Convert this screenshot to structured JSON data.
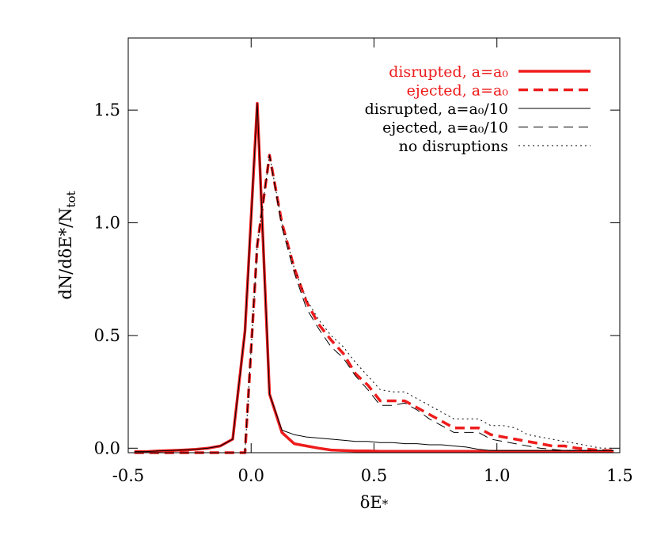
{
  "chart_data": {
    "type": "line",
    "xlabel": {
      "main": "δE",
      "sub": "*"
    },
    "ylabel": {
      "main": "dN/dδE*/N",
      "sub": "tot"
    },
    "x": [
      -0.475,
      -0.425,
      -0.375,
      -0.325,
      -0.275,
      -0.225,
      -0.175,
      -0.125,
      -0.075,
      -0.025,
      0.025,
      0.075,
      0.125,
      0.175,
      0.225,
      0.275,
      0.325,
      0.375,
      0.425,
      0.475,
      0.525,
      0.575,
      0.625,
      0.675,
      0.725,
      0.775,
      0.825,
      0.875,
      0.925,
      0.975,
      1.025,
      1.075,
      1.125,
      1.175,
      1.225,
      1.275,
      1.325,
      1.375,
      1.425,
      1.475
    ],
    "series": [
      {
        "name": "disrupted, a=a₀",
        "color": "#ee1c1c",
        "linestyle": "solid",
        "linewidth": 3.5,
        "values": [
          -0.015,
          -0.015,
          -0.012,
          -0.01,
          -0.008,
          -0.005,
          0.0,
          0.01,
          0.04,
          0.52,
          1.53,
          0.24,
          0.07,
          0.02,
          0.01,
          0.0,
          -0.008,
          -0.01,
          -0.012,
          -0.012,
          -0.014,
          -0.014,
          -0.014,
          -0.014,
          -0.014,
          -0.014,
          -0.014,
          -0.014,
          -0.014,
          -0.014,
          -0.014,
          -0.014,
          -0.014,
          -0.014,
          -0.014,
          -0.014,
          -0.014,
          -0.014,
          -0.014,
          -0.014
        ]
      },
      {
        "name": "ejected, a=a₀",
        "color": "#ee1c1c",
        "linestyle": "dashed",
        "linewidth": 3.5,
        "values": [
          -0.02,
          -0.02,
          -0.02,
          -0.02,
          -0.02,
          -0.02,
          -0.02,
          -0.02,
          -0.02,
          -0.02,
          0.9,
          1.3,
          1.0,
          0.8,
          0.65,
          0.55,
          0.48,
          0.42,
          0.33,
          0.28,
          0.21,
          0.21,
          0.21,
          0.18,
          0.15,
          0.12,
          0.09,
          0.09,
          0.09,
          0.06,
          0.05,
          0.04,
          0.03,
          0.02,
          0.01,
          0.01,
          0.0,
          -0.005,
          -0.01,
          -0.01
        ]
      },
      {
        "name": "disrupted, a=a₀/10",
        "color": "#000000",
        "linestyle": "solid",
        "linewidth": 1,
        "values": [
          -0.015,
          -0.015,
          -0.012,
          -0.01,
          -0.008,
          -0.005,
          0.0,
          0.01,
          0.04,
          0.52,
          1.53,
          0.24,
          0.08,
          0.06,
          0.05,
          0.045,
          0.04,
          0.035,
          0.03,
          0.03,
          0.025,
          0.025,
          0.02,
          0.02,
          0.015,
          0.015,
          0.01,
          0.005,
          -0.005,
          -0.01,
          -0.01,
          -0.01,
          -0.01,
          -0.01,
          -0.01,
          -0.01,
          -0.01,
          -0.01,
          -0.01,
          -0.01
        ]
      },
      {
        "name": "ejected, a=a₀/10",
        "color": "#000000",
        "linestyle": "dashed",
        "linewidth": 1,
        "values": [
          -0.02,
          -0.02,
          -0.02,
          -0.02,
          -0.02,
          -0.02,
          -0.02,
          -0.02,
          -0.02,
          -0.02,
          0.9,
          1.3,
          0.98,
          0.78,
          0.62,
          0.53,
          0.45,
          0.4,
          0.32,
          0.26,
          0.19,
          0.19,
          0.2,
          0.17,
          0.13,
          0.1,
          0.07,
          0.07,
          0.07,
          0.04,
          0.03,
          0.02,
          0.01,
          0.0,
          -0.005,
          -0.01,
          -0.01,
          -0.01,
          -0.01,
          -0.01
        ]
      },
      {
        "name": "no disruptions",
        "color": "#000000",
        "linestyle": "dotted",
        "linewidth": 1,
        "values": [
          -0.02,
          -0.02,
          -0.02,
          -0.02,
          -0.02,
          -0.02,
          -0.02,
          -0.02,
          -0.02,
          -0.02,
          0.9,
          1.3,
          1.0,
          0.8,
          0.66,
          0.57,
          0.5,
          0.45,
          0.38,
          0.32,
          0.26,
          0.25,
          0.25,
          0.22,
          0.19,
          0.16,
          0.13,
          0.13,
          0.13,
          0.1,
          0.1,
          0.09,
          0.06,
          0.05,
          0.04,
          0.03,
          0.02,
          0.01,
          0.0,
          0.0
        ]
      }
    ],
    "xlim": [
      -0.5,
      1.5
    ],
    "xticks": [
      -0.5,
      {
        "value": 0,
        "label": "0.0"
      },
      0.5,
      {
        "value": 1,
        "label": "1.0"
      },
      1.5
    ],
    "ylim": [
      -0.02,
      1.82
    ],
    "yticks": [
      {
        "value": 0,
        "label": "0.0"
      },
      0.5,
      {
        "value": 1,
        "label": "1.0"
      },
      1.5
    ],
    "legend": "upper right"
  }
}
